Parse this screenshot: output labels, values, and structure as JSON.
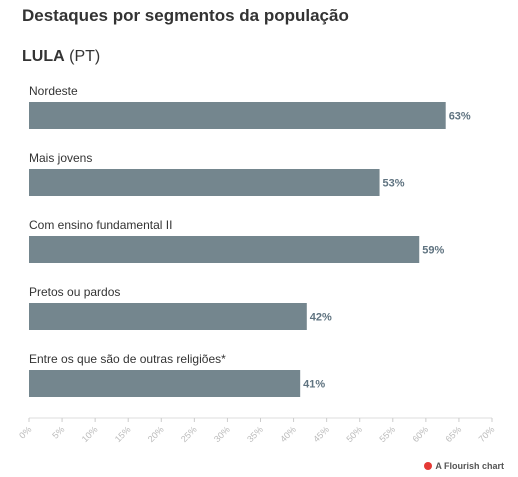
{
  "title": "Destaques por segmentos da população",
  "subtitle": {
    "name": "LULA",
    "party": "(PT)"
  },
  "footer": {
    "credit": "A Flourish chart"
  },
  "colors": {
    "bar": "#74868e",
    "value_label": "#5f7380",
    "tick": "#bbbbbb"
  },
  "chart_data": {
    "type": "bar",
    "orientation": "horizontal",
    "categories": [
      "Nordeste",
      "Mais jovens",
      "Com ensino fundamental II",
      "Pretos ou pardos",
      "Entre os que são de outras religiões*"
    ],
    "values": [
      63,
      53,
      59,
      42,
      41
    ],
    "value_labels": [
      "63%",
      "53%",
      "59%",
      "42%",
      "41%"
    ],
    "xlim": [
      0,
      70
    ],
    "xticks": [
      0,
      5,
      10,
      15,
      20,
      25,
      30,
      35,
      40,
      45,
      50,
      55,
      60,
      65,
      70
    ],
    "xtick_labels": [
      "0%",
      "5%",
      "10%",
      "15%",
      "20%",
      "25%",
      "30%",
      "35%",
      "40%",
      "45%",
      "50%",
      "55%",
      "60%",
      "65%",
      "70%"
    ],
    "grid": false,
    "legend": "none"
  }
}
